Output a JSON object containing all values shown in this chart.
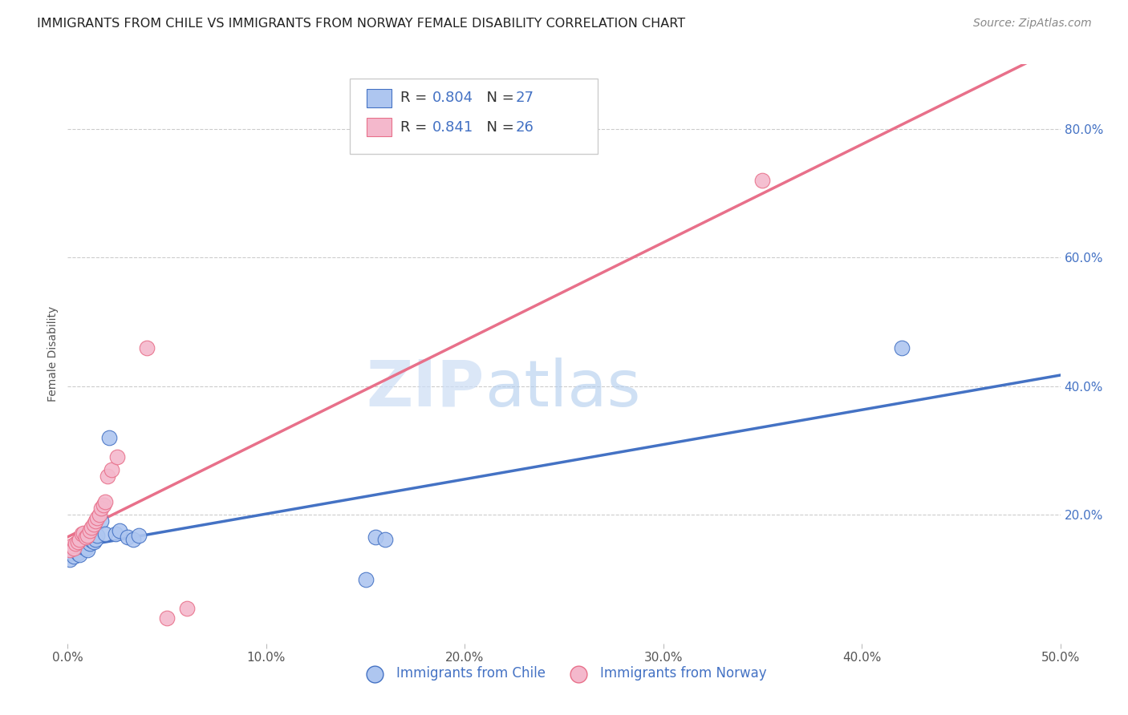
{
  "title": "IMMIGRANTS FROM CHILE VS IMMIGRANTS FROM NORWAY FEMALE DISABILITY CORRELATION CHART",
  "source": "Source: ZipAtlas.com",
  "ylabel": "Female Disability",
  "xlim": [
    0.0,
    0.5
  ],
  "ylim": [
    0.0,
    0.9
  ],
  "xtick_values": [
    0.0,
    0.1,
    0.2,
    0.3,
    0.4,
    0.5
  ],
  "ytick_values_right": [
    0.2,
    0.4,
    0.6,
    0.8
  ],
  "ytick_labels_right": [
    "20.0%",
    "40.0%",
    "60.0%",
    "80.0%"
  ],
  "R_chile": 0.804,
  "N_chile": 27,
  "R_norway": 0.841,
  "N_norway": 26,
  "color_chile": "#aec6f0",
  "color_chile_line": "#4472c4",
  "color_norway": "#f4b8cc",
  "color_norway_line": "#e8708a",
  "legend_label_chile": "Immigrants from Chile",
  "legend_label_norway": "Immigrants from Norway",
  "chile_x": [
    0.001,
    0.002,
    0.003,
    0.004,
    0.005,
    0.006,
    0.007,
    0.008,
    0.009,
    0.01,
    0.011,
    0.012,
    0.013,
    0.014,
    0.015,
    0.017,
    0.019,
    0.021,
    0.024,
    0.026,
    0.03,
    0.033,
    0.036,
    0.155,
    0.16,
    0.42,
    0.15
  ],
  "chile_y": [
    0.13,
    0.14,
    0.135,
    0.145,
    0.14,
    0.138,
    0.15,
    0.155,
    0.148,
    0.145,
    0.155,
    0.16,
    0.158,
    0.162,
    0.168,
    0.19,
    0.17,
    0.32,
    0.17,
    0.175,
    0.165,
    0.162,
    0.168,
    0.165,
    0.162,
    0.46,
    0.1
  ],
  "norway_x": [
    0.001,
    0.002,
    0.003,
    0.004,
    0.005,
    0.006,
    0.007,
    0.008,
    0.009,
    0.01,
    0.011,
    0.012,
    0.013,
    0.014,
    0.015,
    0.016,
    0.017,
    0.018,
    0.019,
    0.02,
    0.022,
    0.025,
    0.04,
    0.05,
    0.06,
    0.35
  ],
  "norway_y": [
    0.145,
    0.152,
    0.148,
    0.155,
    0.158,
    0.162,
    0.17,
    0.172,
    0.165,
    0.168,
    0.175,
    0.18,
    0.185,
    0.19,
    0.195,
    0.2,
    0.21,
    0.215,
    0.22,
    0.26,
    0.27,
    0.29,
    0.46,
    0.04,
    0.055,
    0.72
  ],
  "watermark_zip": "ZIP",
  "watermark_atlas": "atlas",
  "background_color": "#ffffff",
  "grid_color": "#cccccc"
}
